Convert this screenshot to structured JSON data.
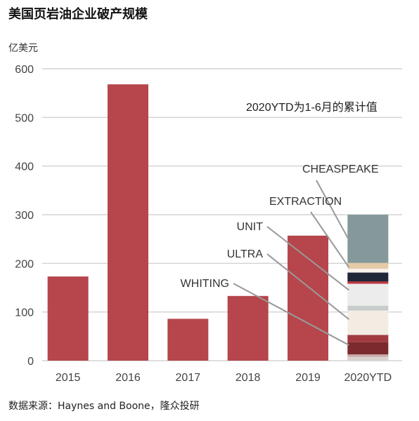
{
  "title": "美国页岩油企业破产规模",
  "unit_label": "亿美元",
  "source": "数据来源：Haynes and Boone，隆众投研",
  "note": "2020YTD为1-6月的累计值",
  "colors": {
    "bar": "#b6464b",
    "grid": "#d4d4d4",
    "axis_text": "#444444",
    "leader": "#999999"
  },
  "chart_data": {
    "type": "bar",
    "ylabel": "亿美元",
    "ylim": [
      0,
      600
    ],
    "yticks": [
      0,
      100,
      200,
      300,
      400,
      500,
      600
    ],
    "grid": true,
    "categories": [
      "2015",
      "2016",
      "2017",
      "2018",
      "2019"
    ],
    "values": [
      173,
      568,
      86,
      133,
      257
    ],
    "stacked_bar": {
      "category": "2020YTD",
      "segments": [
        {
          "value": 8,
          "color": "#d9d2cf"
        },
        {
          "value": 5,
          "color": "#c9a8a6"
        },
        {
          "value": 25,
          "color": "#7b2a2e"
        },
        {
          "value": 15,
          "color": "#a23b40"
        },
        {
          "value": 50,
          "color": "#f3ece3"
        },
        {
          "value": 10,
          "color": "#c6cdca"
        },
        {
          "value": 45,
          "color": "#ececec"
        },
        {
          "value": 5,
          "color": "#b83a40"
        },
        {
          "value": 18,
          "color": "#1e2638"
        },
        {
          "value": 8,
          "color": "#f6f1ea"
        },
        {
          "value": 12,
          "color": "#e6c9a6"
        },
        {
          "value": 99,
          "color": "#85999b"
        }
      ]
    },
    "annotations": [
      {
        "label": "CHEASPEAKE",
        "target_value": 248
      },
      {
        "label": "EXTRACTION",
        "target_value": 192
      },
      {
        "label": "UNIT",
        "target_value": 145
      },
      {
        "label": "ULTRA",
        "target_value": 85
      },
      {
        "label": "WHITING",
        "target_value": 32
      }
    ]
  }
}
